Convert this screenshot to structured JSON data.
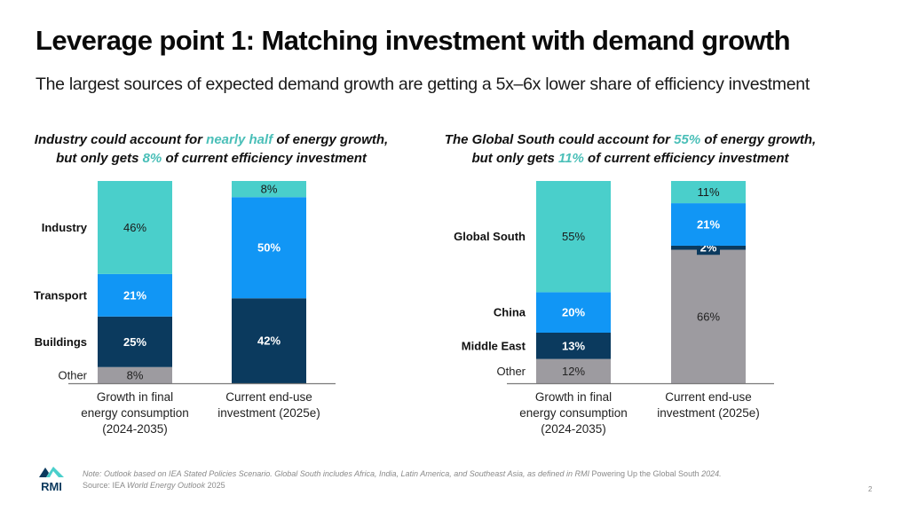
{
  "header": {
    "title": "Leverage point 1: Matching investment with demand growth",
    "subtitle": "The largest sources of expected demand growth are getting a 5x–6x lower share of efficiency investment"
  },
  "colors": {
    "teal": "#4ACFCB",
    "blue": "#1196F5",
    "navy": "#0B3A5E",
    "gray": "#9D9BA0",
    "highlight_text": "#4ABFB8"
  },
  "panels": [
    {
      "heading_line1_pre": "Industry could account for ",
      "heading_line1_hl": "nearly half",
      "heading_line1_post": " of energy growth,",
      "heading_line2_pre": "but only gets ",
      "heading_line2_hl": "8%",
      "heading_line2_post": " of current efficiency investment"
    },
    {
      "heading_line1_pre": "The Global South could account for ",
      "heading_line1_hl": "55%",
      "heading_line1_post": " of energy growth,",
      "heading_line2_pre": "but only gets ",
      "heading_line2_hl": "11%",
      "heading_line2_post": " of current efficiency investment"
    }
  ],
  "chart_data": [
    {
      "type": "bar",
      "stacked": true,
      "title": "Industry could account for nearly half of energy growth, but only gets 8% of current efficiency investment",
      "categories": [
        "Growth in final energy consumption (2024-2035)",
        "Current end-use investment (2025e)"
      ],
      "category_lines": [
        [
          "Growth in final",
          "energy consumption",
          "(2024-2035)"
        ],
        [
          "Current end-use",
          "investment (2025e)"
        ]
      ],
      "series": [
        {
          "name": "Other",
          "color": "#9D9BA0",
          "values": [
            8,
            0
          ],
          "labels": [
            "8%",
            ""
          ],
          "label_color": "#222222",
          "bold": false
        },
        {
          "name": "Buildings",
          "color": "#0B3A5E",
          "values": [
            25,
            42
          ],
          "labels": [
            "25%",
            "42%"
          ],
          "label_color": "#ffffff",
          "bold": true
        },
        {
          "name": "Transport",
          "color": "#1196F5",
          "values": [
            21,
            50
          ],
          "labels": [
            "21%",
            "50%"
          ],
          "label_color": "#ffffff",
          "bold": true
        },
        {
          "name": "Industry",
          "color": "#4ACFCB",
          "values": [
            46,
            8
          ],
          "labels": [
            "46%",
            "8%"
          ],
          "label_color": "#1a1a1a",
          "bold": false
        }
      ],
      "ylim": [
        0,
        100
      ],
      "xlabel": "",
      "ylabel": "",
      "grid": false,
      "legend": "left-of-first-bar"
    },
    {
      "type": "bar",
      "stacked": true,
      "title": "The Global South could account for 55% of energy growth, but only gets 11% of current efficiency investment",
      "categories": [
        "Growth in final energy consumption (2024-2035)",
        "Current end-use investment (2025e)"
      ],
      "category_lines": [
        [
          "Growth in final",
          "energy consumption",
          "(2024-2035)"
        ],
        [
          "Current end-use",
          "investment (2025e)"
        ]
      ],
      "series": [
        {
          "name": "Other",
          "color": "#9D9BA0",
          "values": [
            12,
            66
          ],
          "labels": [
            "12%",
            "66%"
          ],
          "label_color": "#222222",
          "bold": false
        },
        {
          "name": "Middle East",
          "color": "#0B3A5E",
          "values": [
            13,
            2
          ],
          "labels": [
            "13%",
            "2%"
          ],
          "label_color": "#ffffff",
          "bold": true
        },
        {
          "name": "China",
          "color": "#1196F5",
          "values": [
            20,
            21
          ],
          "labels": [
            "20%",
            "21%"
          ],
          "label_color": "#ffffff",
          "bold": true
        },
        {
          "name": "Global South",
          "color": "#4ACFCB",
          "values": [
            55,
            11
          ],
          "labels": [
            "55%",
            "11%"
          ],
          "label_color": "#1a1a1a",
          "bold": false
        }
      ],
      "ylim": [
        0,
        100
      ],
      "xlabel": "",
      "ylabel": "",
      "grid": false,
      "legend": "left-of-first-bar"
    }
  ],
  "footer": {
    "note_prefix": "Note: Outlook based on IEA Stated Policies Scenario. Global South includes Africa, India, Latin America, and Southeast Asia, as defined in RMI ",
    "note_report": "Powering Up the Global South",
    "note_suffix": " 2024.",
    "source_prefix": "Source: IEA ",
    "source_title": "World Energy Outlook",
    "source_suffix": " 2025",
    "logo_text": "RMI",
    "page_number": "2"
  }
}
